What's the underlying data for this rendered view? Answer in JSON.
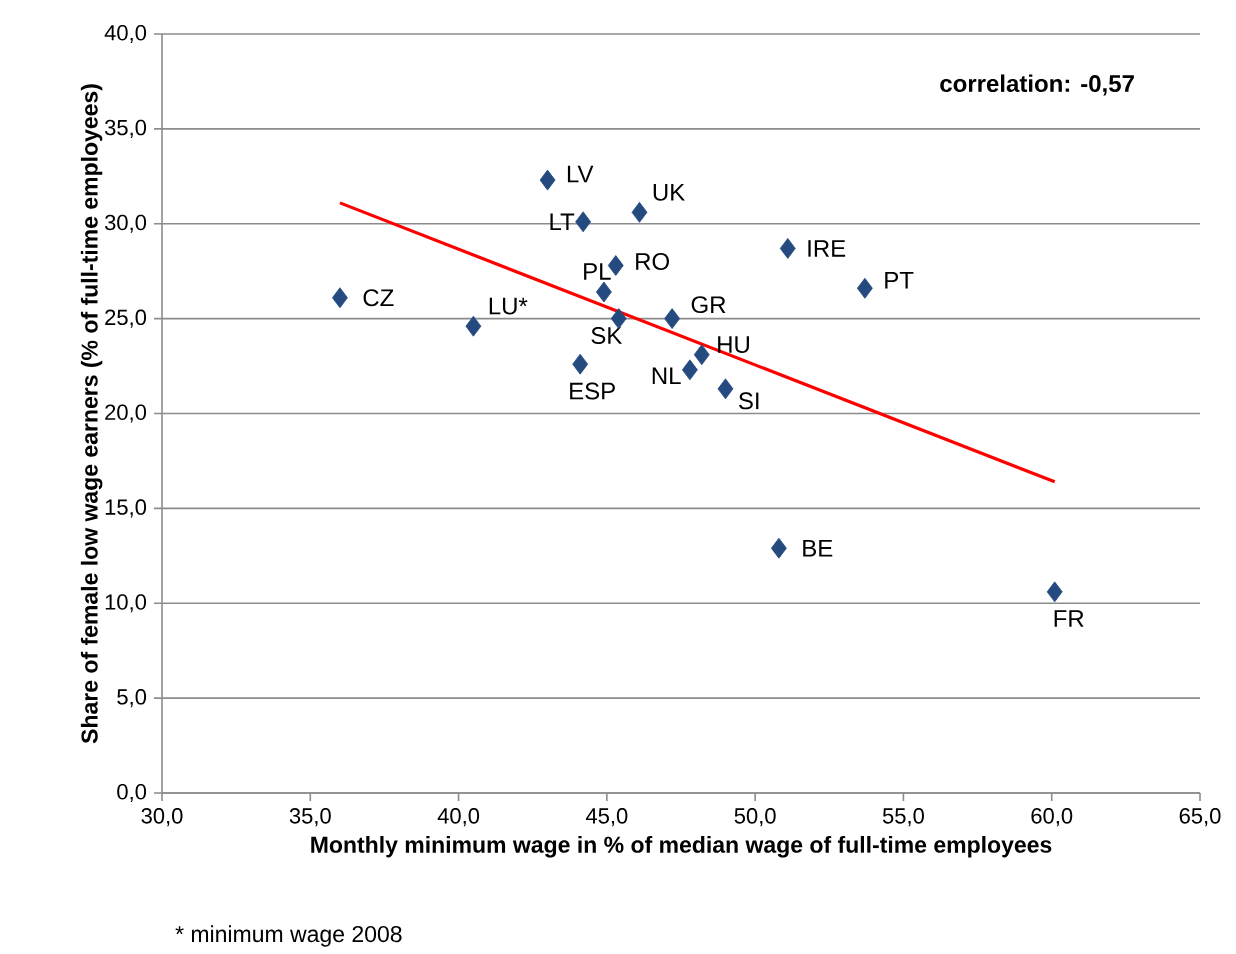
{
  "chart_data": {
    "type": "scatter",
    "xlabel": "Monthly minimum wage in % of median wage of full-time employees",
    "ylabel": "Share of female low wage earners (% of full-time employees)",
    "series": [
      {
        "color": "#254a7f",
        "marker": "diamond",
        "x": [
          43.0,
          46.1,
          44.2,
          51.1,
          45.3,
          53.7,
          36.0,
          44.9,
          40.5,
          45.4,
          47.2,
          48.2,
          47.8,
          44.1,
          49.0,
          50.8,
          60.1
        ],
        "values": [
          32.3,
          30.6,
          30.1,
          28.7,
          27.8,
          26.6,
          26.1,
          26.4,
          24.6,
          25.0,
          25.0,
          23.1,
          22.3,
          22.6,
          21.3,
          12.9,
          10.6
        ]
      },
      {
        "type": "line",
        "marker": "none",
        "color": "#ff0000",
        "x": [
          36.0,
          60.1
        ],
        "values": [
          31.1,
          16.4
        ]
      }
    ],
    "xlim": [
      30,
      65
    ],
    "ylim": [
      0,
      40
    ],
    "xticks": [
      {
        "value": 30,
        "label": "30,0"
      },
      {
        "value": 35,
        "label": "35,0"
      },
      {
        "value": 40,
        "label": "40,0"
      },
      {
        "value": 45,
        "label": "45,0"
      },
      {
        "value": 50,
        "label": "50,0"
      },
      {
        "value": 55,
        "label": "55,0"
      },
      {
        "value": 60,
        "label": "60,0"
      },
      {
        "value": 65,
        "label": "65,0"
      }
    ],
    "yticks": [
      {
        "value": 0,
        "label": "0,0"
      },
      {
        "value": 5,
        "label": "5,0"
      },
      {
        "value": 10,
        "label": "10,0"
      },
      {
        "value": 15,
        "label": "15,0"
      },
      {
        "value": 20,
        "label": "20,0"
      },
      {
        "value": 25,
        "label": "25,0"
      },
      {
        "value": 30,
        "label": "30,0"
      },
      {
        "value": 35,
        "label": "35,0"
      },
      {
        "value": 40,
        "label": "40,0"
      }
    ],
    "grid": "y",
    "annotations": [
      "correlation: -0,57",
      {
        "text": "LV",
        "x": 43.0,
        "y": 32.3
      },
      {
        "text": "UK",
        "x": 46.1,
        "y": 30.6
      },
      {
        "text": "LT",
        "x": 44.2,
        "y": 30.1
      },
      {
        "text": "IRE",
        "x": 51.1,
        "y": 28.7
      },
      {
        "text": "RO",
        "x": 45.3,
        "y": 27.8
      },
      {
        "text": "PT",
        "x": 53.7,
        "y": 26.6
      },
      {
        "text": "CZ",
        "x": 36.0,
        "y": 26.1
      },
      {
        "text": "PL",
        "x": 44.9,
        "y": 26.4
      },
      {
        "text": "LU*",
        "x": 40.5,
        "y": 24.6
      },
      {
        "text": "SK",
        "x": 45.4,
        "y": 25.0
      },
      {
        "text": "GR",
        "x": 47.2,
        "y": 25.0
      },
      {
        "text": "HU",
        "x": 48.2,
        "y": 23.1
      },
      {
        "text": "NL",
        "x": 47.8,
        "y": 22.3
      },
      {
        "text": "ESP",
        "x": 44.1,
        "y": 22.6
      },
      {
        "text": "SI",
        "x": 49.0,
        "y": 21.3
      },
      {
        "text": "BE",
        "x": 50.8,
        "y": 12.9
      },
      {
        "text": "FR",
        "x": 60.1,
        "y": 10.6
      },
      "* minimum wage 2008"
    ]
  }
}
